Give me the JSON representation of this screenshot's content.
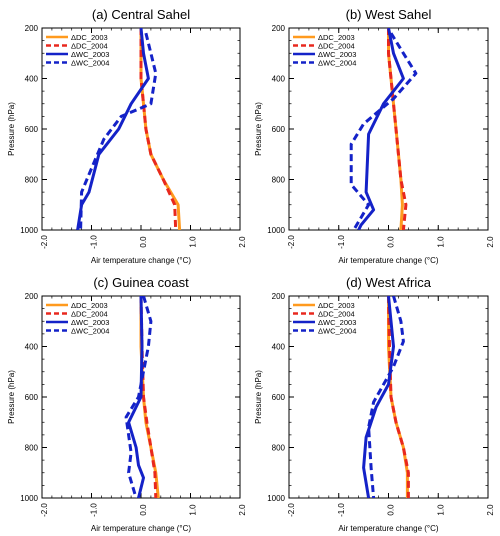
{
  "chart_data": [
    {
      "type": "line",
      "title": "(a) Central Sahel",
      "xlabel": "Air temperature change (°C)",
      "ylabel": "Pressure (hPa)",
      "xlim": [
        -2.0,
        2.0
      ],
      "ylim": [
        1000,
        200
      ],
      "y_reversed": true,
      "xticks": [
        "-2.0",
        "-1.0",
        "0.0",
        "1.0",
        "2.0"
      ],
      "yticks": [
        "200",
        "400",
        "600",
        "800",
        "1000"
      ],
      "legend_position": "top-left",
      "series": [
        {
          "name": "ΔDC_2003",
          "color": "#ff9a1e",
          "style": "solid",
          "points": [
            [
              0.0,
              200
            ],
            [
              0.0,
              300
            ],
            [
              0.0,
              400
            ],
            [
              0.05,
              500
            ],
            [
              0.1,
              600
            ],
            [
              0.2,
              700
            ],
            [
              0.45,
              800
            ],
            [
              0.75,
              900
            ],
            [
              0.78,
              1000
            ]
          ]
        },
        {
          "name": "ΔDC_2004",
          "color": "#e8281e",
          "style": "dashed",
          "points": [
            [
              0.0,
              200
            ],
            [
              0.0,
              300
            ],
            [
              0.0,
              400
            ],
            [
              0.05,
              500
            ],
            [
              0.1,
              600
            ],
            [
              0.2,
              700
            ],
            [
              0.45,
              800
            ],
            [
              0.68,
              900
            ],
            [
              0.7,
              1000
            ]
          ]
        },
        {
          "name": "ΔWC_2003",
          "color": "#1422c8",
          "style": "solid",
          "points": [
            [
              0.0,
              200
            ],
            [
              0.05,
              300
            ],
            [
              0.15,
              400
            ],
            [
              -0.2,
              500
            ],
            [
              -0.45,
              600
            ],
            [
              -0.85,
              700
            ],
            [
              -1.05,
              850
            ],
            [
              -1.2,
              900
            ],
            [
              -1.28,
              1000
            ]
          ]
        },
        {
          "name": "ΔWC_2004",
          "color": "#1422c8",
          "style": "dashed",
          "points": [
            [
              0.1,
              220
            ],
            [
              0.2,
              300
            ],
            [
              0.3,
              380
            ],
            [
              0.2,
              500
            ],
            [
              -0.4,
              550
            ],
            [
              -0.75,
              640
            ],
            [
              -1.05,
              780
            ],
            [
              -1.2,
              850
            ],
            [
              -1.22,
              1000
            ]
          ]
        }
      ]
    },
    {
      "type": "line",
      "title": "(b) West Sahel",
      "xlabel": "Air temperature change (°C)",
      "ylabel": "Pressure (hPa)",
      "xlim": [
        -2.0,
        2.0
      ],
      "ylim": [
        1000,
        200
      ],
      "y_reversed": true,
      "xticks": [
        "-2.0",
        "-1.0",
        "0.0",
        "1.0",
        "2.0"
      ],
      "yticks": [
        "200",
        "400",
        "600",
        "800",
        "1000"
      ],
      "legend_position": "top-left",
      "series": [
        {
          "name": "ΔDC_2003",
          "color": "#ff9a1e",
          "style": "solid",
          "points": [
            [
              0.0,
              200
            ],
            [
              0.0,
              300
            ],
            [
              0.05,
              400
            ],
            [
              0.1,
              500
            ],
            [
              0.15,
              600
            ],
            [
              0.25,
              800
            ],
            [
              0.28,
              900
            ],
            [
              0.25,
              1000
            ]
          ]
        },
        {
          "name": "ΔDC_2004",
          "color": "#e8281e",
          "style": "dashed",
          "points": [
            [
              0.0,
              200
            ],
            [
              0.0,
              300
            ],
            [
              0.05,
              400
            ],
            [
              0.1,
              500
            ],
            [
              0.15,
              600
            ],
            [
              0.25,
              800
            ],
            [
              0.35,
              900
            ],
            [
              0.3,
              1000
            ]
          ]
        },
        {
          "name": "ΔWC_2003",
          "color": "#1422c8",
          "style": "solid",
          "points": [
            [
              0.0,
              200
            ],
            [
              0.1,
              300
            ],
            [
              0.3,
              400
            ],
            [
              -0.1,
              500
            ],
            [
              -0.4,
              620
            ],
            [
              -0.45,
              850
            ],
            [
              -0.3,
              920
            ],
            [
              -0.55,
              980
            ],
            [
              -0.6,
              1000
            ]
          ]
        },
        {
          "name": "ΔWC_2004",
          "color": "#1422c8",
          "style": "dashed",
          "points": [
            [
              0.05,
              220
            ],
            [
              0.3,
              300
            ],
            [
              0.55,
              380
            ],
            [
              0.1,
              480
            ],
            [
              -0.5,
              580
            ],
            [
              -0.75,
              660
            ],
            [
              -0.75,
              820
            ],
            [
              -0.4,
              900
            ],
            [
              -0.7,
              1000
            ]
          ]
        }
      ]
    },
    {
      "type": "line",
      "title": "(c) Guinea coast",
      "xlabel": "Air temperature change (°C)",
      "ylabel": "Pressure (hPa)",
      "xlim": [
        -2.0,
        2.0
      ],
      "ylim": [
        1000,
        200
      ],
      "y_reversed": true,
      "xticks": [
        "-2.0",
        "-1.0",
        "0.0",
        "1.0",
        "2.0"
      ],
      "yticks": [
        "200",
        "400",
        "600",
        "800",
        "1000"
      ],
      "legend_position": "top-left",
      "series": [
        {
          "name": "ΔDC_2003",
          "color": "#ff9a1e",
          "style": "solid",
          "points": [
            [
              0.0,
              200
            ],
            [
              0.0,
              400
            ],
            [
              0.05,
              600
            ],
            [
              0.1,
              700
            ],
            [
              0.2,
              800
            ],
            [
              0.3,
              900
            ],
            [
              0.35,
              1000
            ]
          ]
        },
        {
          "name": "ΔDC_2004",
          "color": "#e8281e",
          "style": "dashed",
          "points": [
            [
              0.0,
              200
            ],
            [
              0.02,
              400
            ],
            [
              0.05,
              600
            ],
            [
              0.12,
              700
            ],
            [
              0.2,
              800
            ],
            [
              0.28,
              900
            ],
            [
              0.3,
              1000
            ]
          ]
        },
        {
          "name": "ΔWC_2003",
          "color": "#1422c8",
          "style": "solid",
          "points": [
            [
              0.0,
              200
            ],
            [
              0.02,
              400
            ],
            [
              0.0,
              600
            ],
            [
              -0.25,
              700
            ],
            [
              -0.1,
              800
            ],
            [
              -0.05,
              870
            ],
            [
              0.05,
              920
            ],
            [
              -0.05,
              1000
            ]
          ]
        },
        {
          "name": "ΔWC_2004",
          "color": "#1422c8",
          "style": "dashed",
          "points": [
            [
              0.05,
              200
            ],
            [
              0.2,
              300
            ],
            [
              0.15,
              400
            ],
            [
              -0.05,
              600
            ],
            [
              -0.3,
              680
            ],
            [
              -0.2,
              820
            ],
            [
              -0.25,
              900
            ],
            [
              -0.1,
              1000
            ]
          ]
        }
      ]
    },
    {
      "type": "line",
      "title": "(d) West Africa",
      "xlabel": "Air temperature change (°C)",
      "ylabel": "Pressure (hPa)",
      "xlim": [
        -2.0,
        2.0
      ],
      "ylim": [
        1000,
        200
      ],
      "y_reversed": true,
      "xticks": [
        "-2.0",
        "-1.0",
        "0.0",
        "1.0",
        "2.0"
      ],
      "yticks": [
        "200",
        "400",
        "600",
        "800",
        "1000"
      ],
      "legend_position": "top-left",
      "series": [
        {
          "name": "ΔDC_2003",
          "color": "#ff9a1e",
          "style": "solid",
          "points": [
            [
              0.0,
              200
            ],
            [
              0.0,
              400
            ],
            [
              0.05,
              600
            ],
            [
              0.15,
              700
            ],
            [
              0.3,
              800
            ],
            [
              0.38,
              900
            ],
            [
              0.38,
              1000
            ]
          ]
        },
        {
          "name": "ΔDC_2004",
          "color": "#e8281e",
          "style": "dashed",
          "points": [
            [
              0.0,
              200
            ],
            [
              0.02,
              400
            ],
            [
              0.05,
              600
            ],
            [
              0.15,
              700
            ],
            [
              0.3,
              800
            ],
            [
              0.4,
              900
            ],
            [
              0.4,
              1000
            ]
          ]
        },
        {
          "name": "ΔWC_2003",
          "color": "#1422c8",
          "style": "solid",
          "points": [
            [
              0.0,
              200
            ],
            [
              0.05,
              300
            ],
            [
              0.1,
              400
            ],
            [
              0.0,
              550
            ],
            [
              -0.25,
              640
            ],
            [
              -0.45,
              760
            ],
            [
              -0.5,
              880
            ],
            [
              -0.4,
              1000
            ]
          ]
        },
        {
          "name": "ΔWC_2004",
          "color": "#1422c8",
          "style": "dashed",
          "points": [
            [
              0.1,
              200
            ],
            [
              0.25,
              300
            ],
            [
              0.3,
              380
            ],
            [
              0.1,
              480
            ],
            [
              -0.3,
              620
            ],
            [
              -0.4,
              720
            ],
            [
              -0.35,
              880
            ],
            [
              -0.3,
              1000
            ]
          ]
        }
      ]
    }
  ]
}
